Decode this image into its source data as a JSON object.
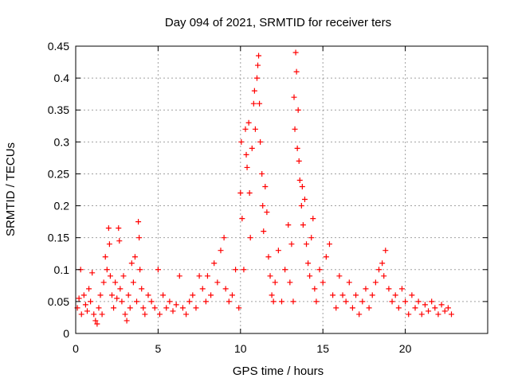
{
  "chart_data": {
    "type": "scatter",
    "title": "Day 094 of 2021, SRMTID for receiver ters",
    "xlabel": "GPS time / hours",
    "ylabel": "SRMTID / TECUs",
    "xlim": [
      0,
      25
    ],
    "ylim": [
      0,
      0.45
    ],
    "xticks": [
      0,
      5,
      10,
      15,
      20
    ],
    "xtick_labels": [
      "0",
      "5",
      "10",
      "15",
      "20"
    ],
    "yticks": [
      0,
      0.05,
      0.1,
      0.15,
      0.2,
      0.25,
      0.3,
      0.35,
      0.4,
      0.45
    ],
    "ytick_labels": [
      "0",
      "0.05",
      "0.1",
      "0.15",
      "0.2",
      "0.25",
      "0.3",
      "0.35",
      "0.4",
      "0.45"
    ],
    "grid": true,
    "marker": "plus",
    "color": "#ff0000",
    "series": [
      {
        "name": "SRMTID",
        "points": [
          [
            0.1,
            0.04
          ],
          [
            0.2,
            0.055
          ],
          [
            0.3,
            0.1
          ],
          [
            0.35,
            0.03
          ],
          [
            0.5,
            0.06
          ],
          [
            0.6,
            0.045
          ],
          [
            0.7,
            0.035
          ],
          [
            0.8,
            0.07
          ],
          [
            0.9,
            0.05
          ],
          [
            1.0,
            0.095
          ],
          [
            1.1,
            0.03
          ],
          [
            1.2,
            0.02
          ],
          [
            1.3,
            0.015
          ],
          [
            1.4,
            0.04
          ],
          [
            1.5,
            0.06
          ],
          [
            1.6,
            0.03
          ],
          [
            1.7,
            0.08
          ],
          [
            1.8,
            0.12
          ],
          [
            1.9,
            0.1
          ],
          [
            2.0,
            0.165
          ],
          [
            2.05,
            0.14
          ],
          [
            2.1,
            0.09
          ],
          [
            2.2,
            0.06
          ],
          [
            2.3,
            0.04
          ],
          [
            2.4,
            0.08
          ],
          [
            2.5,
            0.055
          ],
          [
            2.6,
            0.165
          ],
          [
            2.65,
            0.145
          ],
          [
            2.7,
            0.07
          ],
          [
            2.8,
            0.05
          ],
          [
            2.9,
            0.09
          ],
          [
            3.0,
            0.03
          ],
          [
            3.1,
            0.02
          ],
          [
            3.2,
            0.06
          ],
          [
            3.3,
            0.04
          ],
          [
            3.4,
            0.11
          ],
          [
            3.5,
            0.08
          ],
          [
            3.6,
            0.12
          ],
          [
            3.7,
            0.05
          ],
          [
            3.8,
            0.175
          ],
          [
            3.85,
            0.15
          ],
          [
            3.9,
            0.1
          ],
          [
            4.0,
            0.07
          ],
          [
            4.1,
            0.04
          ],
          [
            4.2,
            0.03
          ],
          [
            4.4,
            0.06
          ],
          [
            4.6,
            0.05
          ],
          [
            4.8,
            0.04
          ],
          [
            5.0,
            0.1
          ],
          [
            5.1,
            0.03
          ],
          [
            5.3,
            0.06
          ],
          [
            5.5,
            0.04
          ],
          [
            5.7,
            0.05
          ],
          [
            5.9,
            0.035
          ],
          [
            6.1,
            0.045
          ],
          [
            6.3,
            0.09
          ],
          [
            6.5,
            0.04
          ],
          [
            6.7,
            0.03
          ],
          [
            6.9,
            0.05
          ],
          [
            7.1,
            0.06
          ],
          [
            7.3,
            0.04
          ],
          [
            7.5,
            0.09
          ],
          [
            7.7,
            0.07
          ],
          [
            7.9,
            0.05
          ],
          [
            8.0,
            0.09
          ],
          [
            8.2,
            0.06
          ],
          [
            8.4,
            0.11
          ],
          [
            8.6,
            0.08
          ],
          [
            8.8,
            0.13
          ],
          [
            9.0,
            0.15
          ],
          [
            9.1,
            0.07
          ],
          [
            9.3,
            0.05
          ],
          [
            9.5,
            0.06
          ],
          [
            9.7,
            0.1
          ],
          [
            9.9,
            0.04
          ],
          [
            10.0,
            0.22
          ],
          [
            10.05,
            0.3
          ],
          [
            10.1,
            0.18
          ],
          [
            10.2,
            0.1
          ],
          [
            10.3,
            0.32
          ],
          [
            10.35,
            0.28
          ],
          [
            10.4,
            0.26
          ],
          [
            10.5,
            0.33
          ],
          [
            10.55,
            0.22
          ],
          [
            10.6,
            0.15
          ],
          [
            10.7,
            0.29
          ],
          [
            10.8,
            0.36
          ],
          [
            10.85,
            0.38
          ],
          [
            10.9,
            0.32
          ],
          [
            11.0,
            0.4
          ],
          [
            11.05,
            0.42
          ],
          [
            11.1,
            0.435
          ],
          [
            11.15,
            0.36
          ],
          [
            11.2,
            0.3
          ],
          [
            11.3,
            0.25
          ],
          [
            11.35,
            0.2
          ],
          [
            11.4,
            0.16
          ],
          [
            11.5,
            0.23
          ],
          [
            11.6,
            0.19
          ],
          [
            11.7,
            0.12
          ],
          [
            11.8,
            0.09
          ],
          [
            11.9,
            0.06
          ],
          [
            12.0,
            0.05
          ],
          [
            12.1,
            0.08
          ],
          [
            12.3,
            0.13
          ],
          [
            12.5,
            0.05
          ],
          [
            12.7,
            0.1
          ],
          [
            12.9,
            0.17
          ],
          [
            13.0,
            0.08
          ],
          [
            13.1,
            0.14
          ],
          [
            13.2,
            0.05
          ],
          [
            13.25,
            0.37
          ],
          [
            13.3,
            0.32
          ],
          [
            13.35,
            0.44
          ],
          [
            13.4,
            0.41
          ],
          [
            13.45,
            0.29
          ],
          [
            13.5,
            0.35
          ],
          [
            13.55,
            0.27
          ],
          [
            13.6,
            0.24
          ],
          [
            13.7,
            0.2
          ],
          [
            13.75,
            0.23
          ],
          [
            13.8,
            0.17
          ],
          [
            13.9,
            0.21
          ],
          [
            14.0,
            0.14
          ],
          [
            14.1,
            0.11
          ],
          [
            14.2,
            0.09
          ],
          [
            14.3,
            0.15
          ],
          [
            14.4,
            0.18
          ],
          [
            14.5,
            0.07
          ],
          [
            14.6,
            0.05
          ],
          [
            14.8,
            0.1
          ],
          [
            15.0,
            0.08
          ],
          [
            15.2,
            0.12
          ],
          [
            15.4,
            0.14
          ],
          [
            15.6,
            0.06
          ],
          [
            15.8,
            0.04
          ],
          [
            16.0,
            0.09
          ],
          [
            16.2,
            0.06
          ],
          [
            16.4,
            0.05
          ],
          [
            16.6,
            0.08
          ],
          [
            16.8,
            0.04
          ],
          [
            17.0,
            0.06
          ],
          [
            17.2,
            0.03
          ],
          [
            17.4,
            0.05
          ],
          [
            17.6,
            0.07
          ],
          [
            17.8,
            0.04
          ],
          [
            18.0,
            0.06
          ],
          [
            18.2,
            0.08
          ],
          [
            18.4,
            0.1
          ],
          [
            18.6,
            0.11
          ],
          [
            18.7,
            0.09
          ],
          [
            18.8,
            0.13
          ],
          [
            19.0,
            0.07
          ],
          [
            19.2,
            0.05
          ],
          [
            19.4,
            0.06
          ],
          [
            19.6,
            0.04
          ],
          [
            19.8,
            0.07
          ],
          [
            20.0,
            0.05
          ],
          [
            20.2,
            0.03
          ],
          [
            20.4,
            0.06
          ],
          [
            20.6,
            0.04
          ],
          [
            20.8,
            0.05
          ],
          [
            21.0,
            0.03
          ],
          [
            21.2,
            0.045
          ],
          [
            21.4,
            0.035
          ],
          [
            21.6,
            0.05
          ],
          [
            21.8,
            0.04
          ],
          [
            22.0,
            0.03
          ],
          [
            22.2,
            0.045
          ],
          [
            22.4,
            0.035
          ],
          [
            22.6,
            0.04
          ],
          [
            22.8,
            0.03
          ]
        ]
      }
    ]
  }
}
